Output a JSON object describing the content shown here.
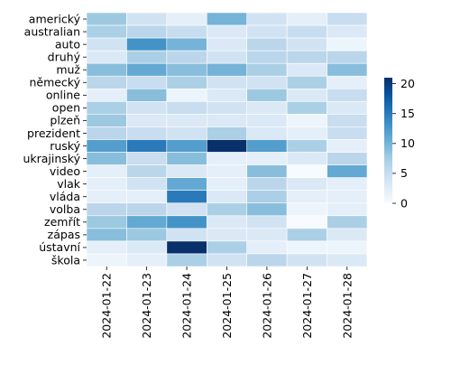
{
  "chart_data": {
    "type": "heatmap",
    "title": "",
    "xlabel": "",
    "ylabel": "",
    "x_categories": [
      "2024-01-22",
      "2024-01-23",
      "2024-01-24",
      "2024-01-25",
      "2024-01-26",
      "2024-01-27",
      "2024-01-28"
    ],
    "y_categories": [
      "americký",
      "australian",
      "auto",
      "druhý",
      "muž",
      "německý",
      "online",
      "open",
      "plzeň",
      "prezident",
      "ruský",
      "ukrajinský",
      "video",
      "vlak",
      "vláda",
      "volba",
      "zemřít",
      "zápas",
      "ústavní",
      "škola"
    ],
    "values": [
      [
        8,
        4,
        2,
        10,
        4,
        2,
        5
      ],
      [
        7,
        6,
        5,
        3,
        4,
        5,
        3
      ],
      [
        4,
        13,
        10,
        3,
        6,
        4,
        1
      ],
      [
        3,
        7,
        6,
        4,
        6,
        6,
        6
      ],
      [
        9,
        11,
        9,
        10,
        7,
        3,
        9
      ],
      [
        6,
        5,
        7,
        4,
        4,
        7,
        2
      ],
      [
        2,
        9,
        1,
        3,
        8,
        3,
        5
      ],
      [
        7,
        4,
        5,
        4,
        3,
        7,
        3
      ],
      [
        8,
        3,
        3,
        3,
        3,
        1,
        5
      ],
      [
        6,
        5,
        4,
        7,
        3,
        2,
        5
      ],
      [
        12,
        15,
        12,
        21,
        12,
        7,
        2
      ],
      [
        9,
        5,
        9,
        2,
        2,
        3,
        6
      ],
      [
        2,
        6,
        3,
        2,
        9,
        0,
        11
      ],
      [
        2,
        4,
        11,
        2,
        6,
        3,
        2
      ],
      [
        2,
        2,
        15,
        3,
        7,
        2,
        2
      ],
      [
        6,
        6,
        4,
        7,
        9,
        1,
        2
      ],
      [
        8,
        11,
        13,
        3,
        4,
        0,
        7
      ],
      [
        9,
        8,
        4,
        3,
        3,
        7,
        3
      ],
      [
        2,
        3,
        21,
        7,
        2,
        1,
        1
      ],
      [
        1,
        2,
        7,
        4,
        6,
        4,
        3
      ]
    ],
    "colorbar": {
      "min": 0,
      "max": 21,
      "ticks": [
        "0",
        "5",
        "10",
        "15",
        "20"
      ],
      "colors": [
        "#f7fbff",
        "#deebf7",
        "#c6dbef",
        "#9ecae1",
        "#6baed6",
        "#4292c6",
        "#2171b5",
        "#08519c",
        "#08306b"
      ]
    },
    "cell_border_color": "#ffffff",
    "grid": false
  }
}
